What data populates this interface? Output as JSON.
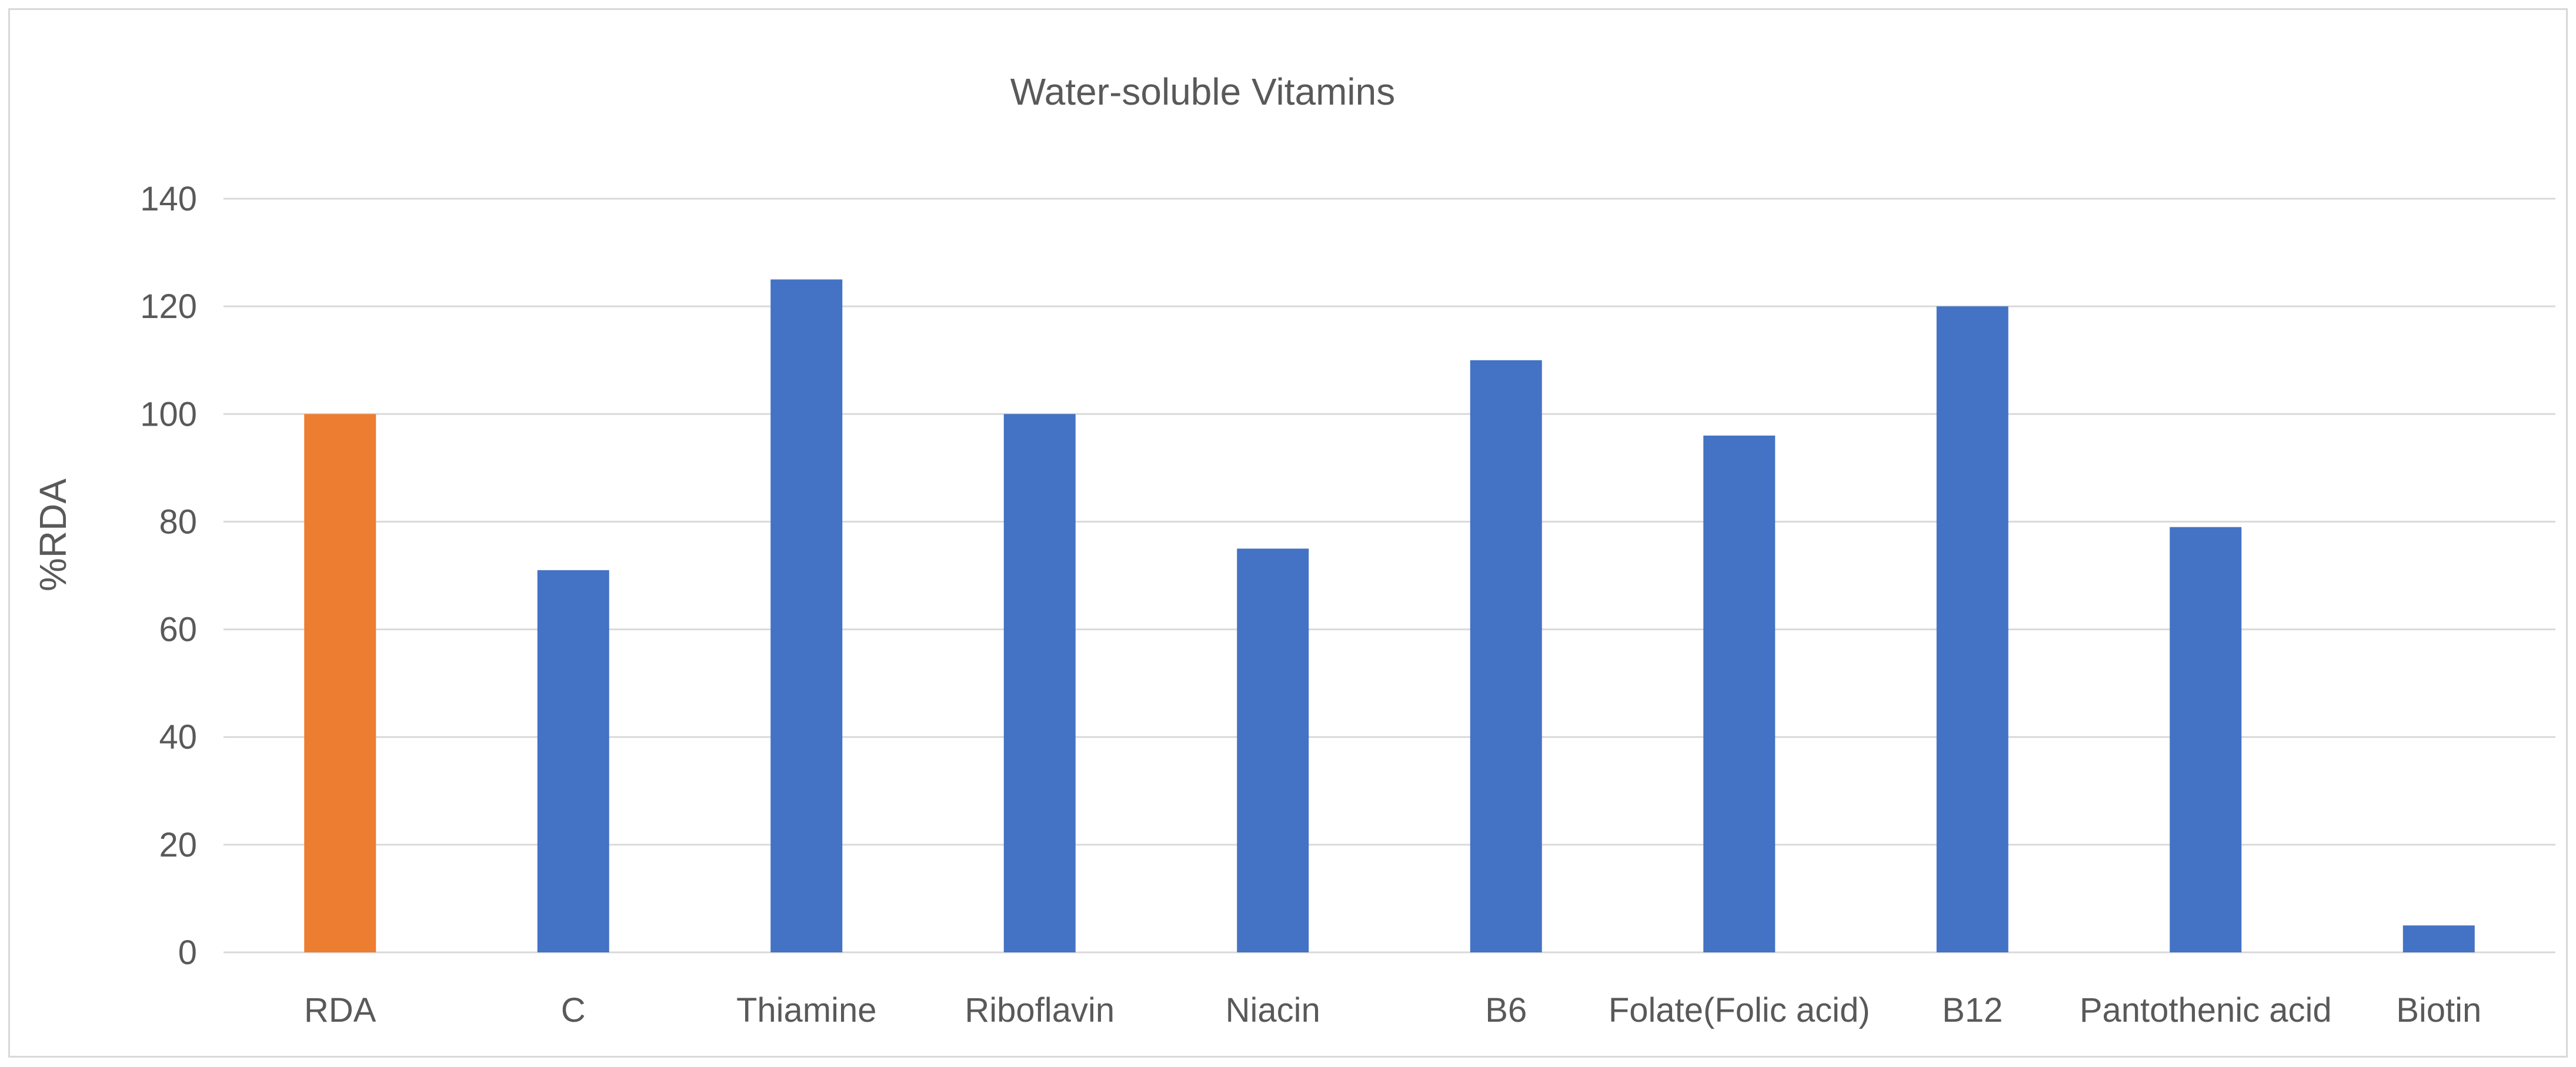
{
  "chart_data": {
    "type": "bar",
    "title": "Water-soluble Vitamins",
    "xlabel": "",
    "ylabel": "%RDA",
    "ylim": [
      0,
      140
    ],
    "yticks": [
      0,
      20,
      40,
      60,
      80,
      100,
      120,
      140
    ],
    "grid": true,
    "legend": "none",
    "categories": [
      "RDA",
      "C",
      "Thiamine",
      "Riboflavin",
      "Niacin",
      "B6",
      "Folate(Folic acid)",
      "B12",
      "Pantothenic acid",
      "Biotin"
    ],
    "values": [
      100,
      71,
      125,
      100,
      75,
      110,
      96,
      120,
      79,
      5
    ],
    "colors": [
      "#ED7D31",
      "#4472C4",
      "#4472C4",
      "#4472C4",
      "#4472C4",
      "#4472C4",
      "#4472C4",
      "#4472C4",
      "#4472C4",
      "#4472C4"
    ]
  }
}
